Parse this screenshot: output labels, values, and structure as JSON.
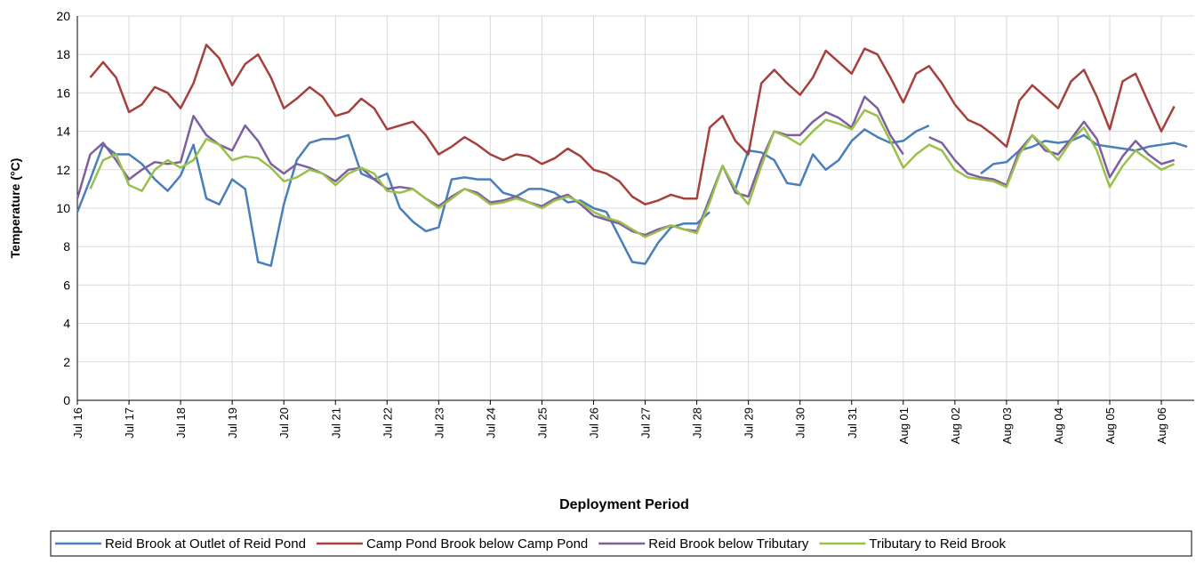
{
  "chart_data": {
    "type": "line",
    "y_label": "Temperature (°C)",
    "x_label": "Deployment Period",
    "categories": [
      "Jul 16",
      null,
      null,
      null,
      "Jul 17",
      null,
      null,
      null,
      "Jul 18",
      null,
      null,
      null,
      "Jul 19",
      null,
      null,
      null,
      "Jul 20",
      null,
      null,
      null,
      "Jul 21",
      null,
      null,
      null,
      "Jul 22",
      null,
      null,
      null,
      "Jul 23",
      null,
      null,
      null,
      "Jul 24",
      null,
      null,
      null,
      "Jul 25",
      null,
      null,
      null,
      "Jul 26",
      null,
      null,
      null,
      "Jul 27",
      null,
      null,
      null,
      "Jul 28",
      null,
      null,
      null,
      "Jul 29",
      null,
      null,
      null,
      "Jul 30",
      null,
      null,
      null,
      "Jul 31",
      null,
      null,
      null,
      "Aug 01",
      null,
      null,
      null,
      "Aug 02",
      null,
      null,
      null,
      "Aug 03",
      null,
      null,
      null,
      "Aug 04",
      null,
      null,
      null,
      "Aug 05",
      null,
      null,
      null,
      "Aug 06",
      null,
      null
    ],
    "series": [
      {
        "name": "Reid Brook at Outlet of Reid Pond",
        "color": "#4a7ebb",
        "values": [
          9.8,
          11.5,
          13.3,
          12.8,
          12.8,
          12.3,
          11.5,
          10.9,
          11.7,
          13.3,
          10.5,
          10.2,
          11.5,
          11.0,
          7.2,
          7.0,
          10.2,
          12.5,
          13.4,
          13.6,
          13.6,
          13.8,
          11.8,
          11.5,
          11.8,
          10.0,
          9.3,
          8.8,
          9.0,
          11.5,
          11.6,
          11.5,
          11.5,
          10.8,
          10.6,
          11.0,
          11.0,
          10.8,
          10.3,
          10.4,
          10.0,
          9.8,
          8.5,
          7.2,
          7.1,
          8.2,
          9.0,
          9.2,
          9.2,
          9.8,
          null,
          11.0,
          13.0,
          12.9,
          12.5,
          11.3,
          11.2,
          12.8,
          12.0,
          12.5,
          13.5,
          14.1,
          13.7,
          13.4,
          13.5,
          14.0,
          14.3,
          null,
          null,
          null,
          11.8,
          12.3,
          12.4,
          13.0,
          13.2,
          13.5,
          13.4,
          13.5,
          13.8,
          13.3,
          13.2,
          13.1,
          13.0,
          13.2,
          13.3,
          13.4,
          13.2
        ]
      },
      {
        "name": "Camp Pond Brook below Camp Pond",
        "color": "#a5403c",
        "values": [
          null,
          16.8,
          17.6,
          16.8,
          15.0,
          15.4,
          16.3,
          16.0,
          15.2,
          16.5,
          18.5,
          17.8,
          16.4,
          17.5,
          18.0,
          16.8,
          15.2,
          15.7,
          16.3,
          15.8,
          14.8,
          15.0,
          15.7,
          15.2,
          14.1,
          14.3,
          14.5,
          13.8,
          12.8,
          13.2,
          13.7,
          13.3,
          12.8,
          12.5,
          12.8,
          12.7,
          12.3,
          12.6,
          13.1,
          12.7,
          12.0,
          11.8,
          11.4,
          10.6,
          10.2,
          10.4,
          10.7,
          10.5,
          10.5,
          14.2,
          14.8,
          13.5,
          12.8,
          16.5,
          17.2,
          16.5,
          15.9,
          16.8,
          18.2,
          17.6,
          17.0,
          18.3,
          18.0,
          16.8,
          15.5,
          17.0,
          17.4,
          16.5,
          15.4,
          14.6,
          14.3,
          13.8,
          13.2,
          15.6,
          16.4,
          15.8,
          15.2,
          16.6,
          17.2,
          15.8,
          14.1,
          16.6,
          17.0,
          15.5,
          14.0,
          15.3,
          null
        ]
      },
      {
        "name": "Reid Brook below Tributary",
        "color": "#7d5fa0",
        "values": [
          10.5,
          12.8,
          13.4,
          12.5,
          11.5,
          12.0,
          12.4,
          12.3,
          12.4,
          14.8,
          13.8,
          13.3,
          13.0,
          14.3,
          13.5,
          12.3,
          11.8,
          12.3,
          12.1,
          11.8,
          11.4,
          12.0,
          12.1,
          11.5,
          11.0,
          11.1,
          11.0,
          10.5,
          10.1,
          10.6,
          11.0,
          10.8,
          10.3,
          10.4,
          10.6,
          10.3,
          10.1,
          10.5,
          10.7,
          10.2,
          9.6,
          9.4,
          9.2,
          8.8,
          8.6,
          8.9,
          9.1,
          8.9,
          8.8,
          10.5,
          12.2,
          10.8,
          10.6,
          12.5,
          14.0,
          13.8,
          13.8,
          14.5,
          15.0,
          14.7,
          14.2,
          15.8,
          15.2,
          13.8,
          12.8,
          null,
          13.7,
          13.4,
          12.5,
          11.8,
          11.6,
          11.5,
          11.2,
          13.0,
          13.8,
          13.0,
          12.8,
          13.6,
          14.5,
          13.6,
          11.6,
          12.7,
          13.5,
          12.8,
          12.3,
          12.5,
          null
        ]
      },
      {
        "name": "Tributary to Reid Brook",
        "color": "#98c04a",
        "values": [
          null,
          11.0,
          12.5,
          12.8,
          11.2,
          10.9,
          12.0,
          12.5,
          12.1,
          12.5,
          13.6,
          13.3,
          12.5,
          12.7,
          12.6,
          12.1,
          11.4,
          11.6,
          12.0,
          11.8,
          11.2,
          11.8,
          12.1,
          11.8,
          10.9,
          10.8,
          11.0,
          10.5,
          10.0,
          10.5,
          11.0,
          10.7,
          10.2,
          10.3,
          10.5,
          10.3,
          10.0,
          10.4,
          10.6,
          10.3,
          9.8,
          9.5,
          9.3,
          8.9,
          8.5,
          8.8,
          9.1,
          8.9,
          8.7,
          10.3,
          12.2,
          11.0,
          10.2,
          12.2,
          14.0,
          13.7,
          13.3,
          14.0,
          14.6,
          14.4,
          14.1,
          15.1,
          14.8,
          13.5,
          12.1,
          12.8,
          13.3,
          13.0,
          12.0,
          11.6,
          11.5,
          11.4,
          11.1,
          12.8,
          13.8,
          13.2,
          12.5,
          13.5,
          14.2,
          13.0,
          11.1,
          12.2,
          13.0,
          12.5,
          12.0,
          12.3,
          null
        ]
      }
    ],
    "ylim": [
      0,
      20
    ],
    "yticks": [
      0,
      2,
      4,
      6,
      8,
      10,
      12,
      14,
      16,
      18,
      20
    ],
    "grid": true
  }
}
